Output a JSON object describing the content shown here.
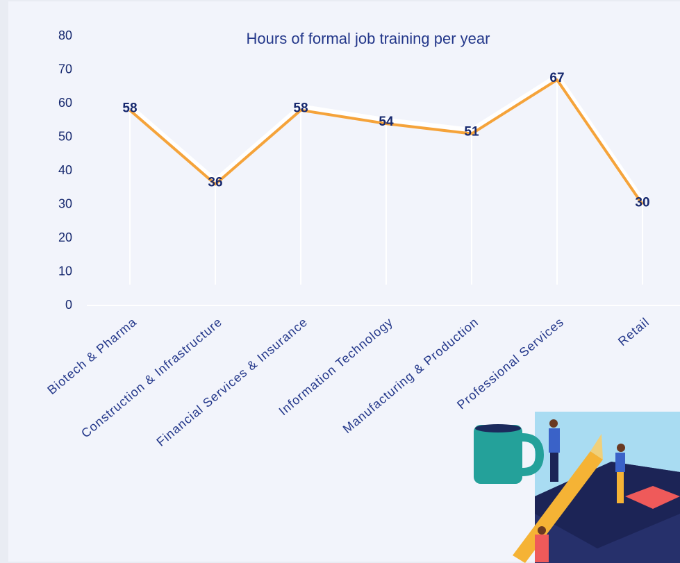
{
  "chart_data": {
    "type": "line",
    "title": "Hours of formal job training per year",
    "categories": [
      "Biotech & Pharma",
      "Construction & Infrastructure",
      "Financial Services & Insurance",
      "Information Technology",
      "Manufacturing & Production",
      "Professional Services",
      "Retail"
    ],
    "values": [
      58,
      36,
      58,
      54,
      51,
      67,
      30
    ],
    "color": "#f5a33a",
    "label_color": "#16286e",
    "ylim": [
      0,
      80
    ],
    "yticks": [
      0,
      10,
      20,
      30,
      40,
      50,
      60,
      70,
      80
    ],
    "grid": false
  }
}
